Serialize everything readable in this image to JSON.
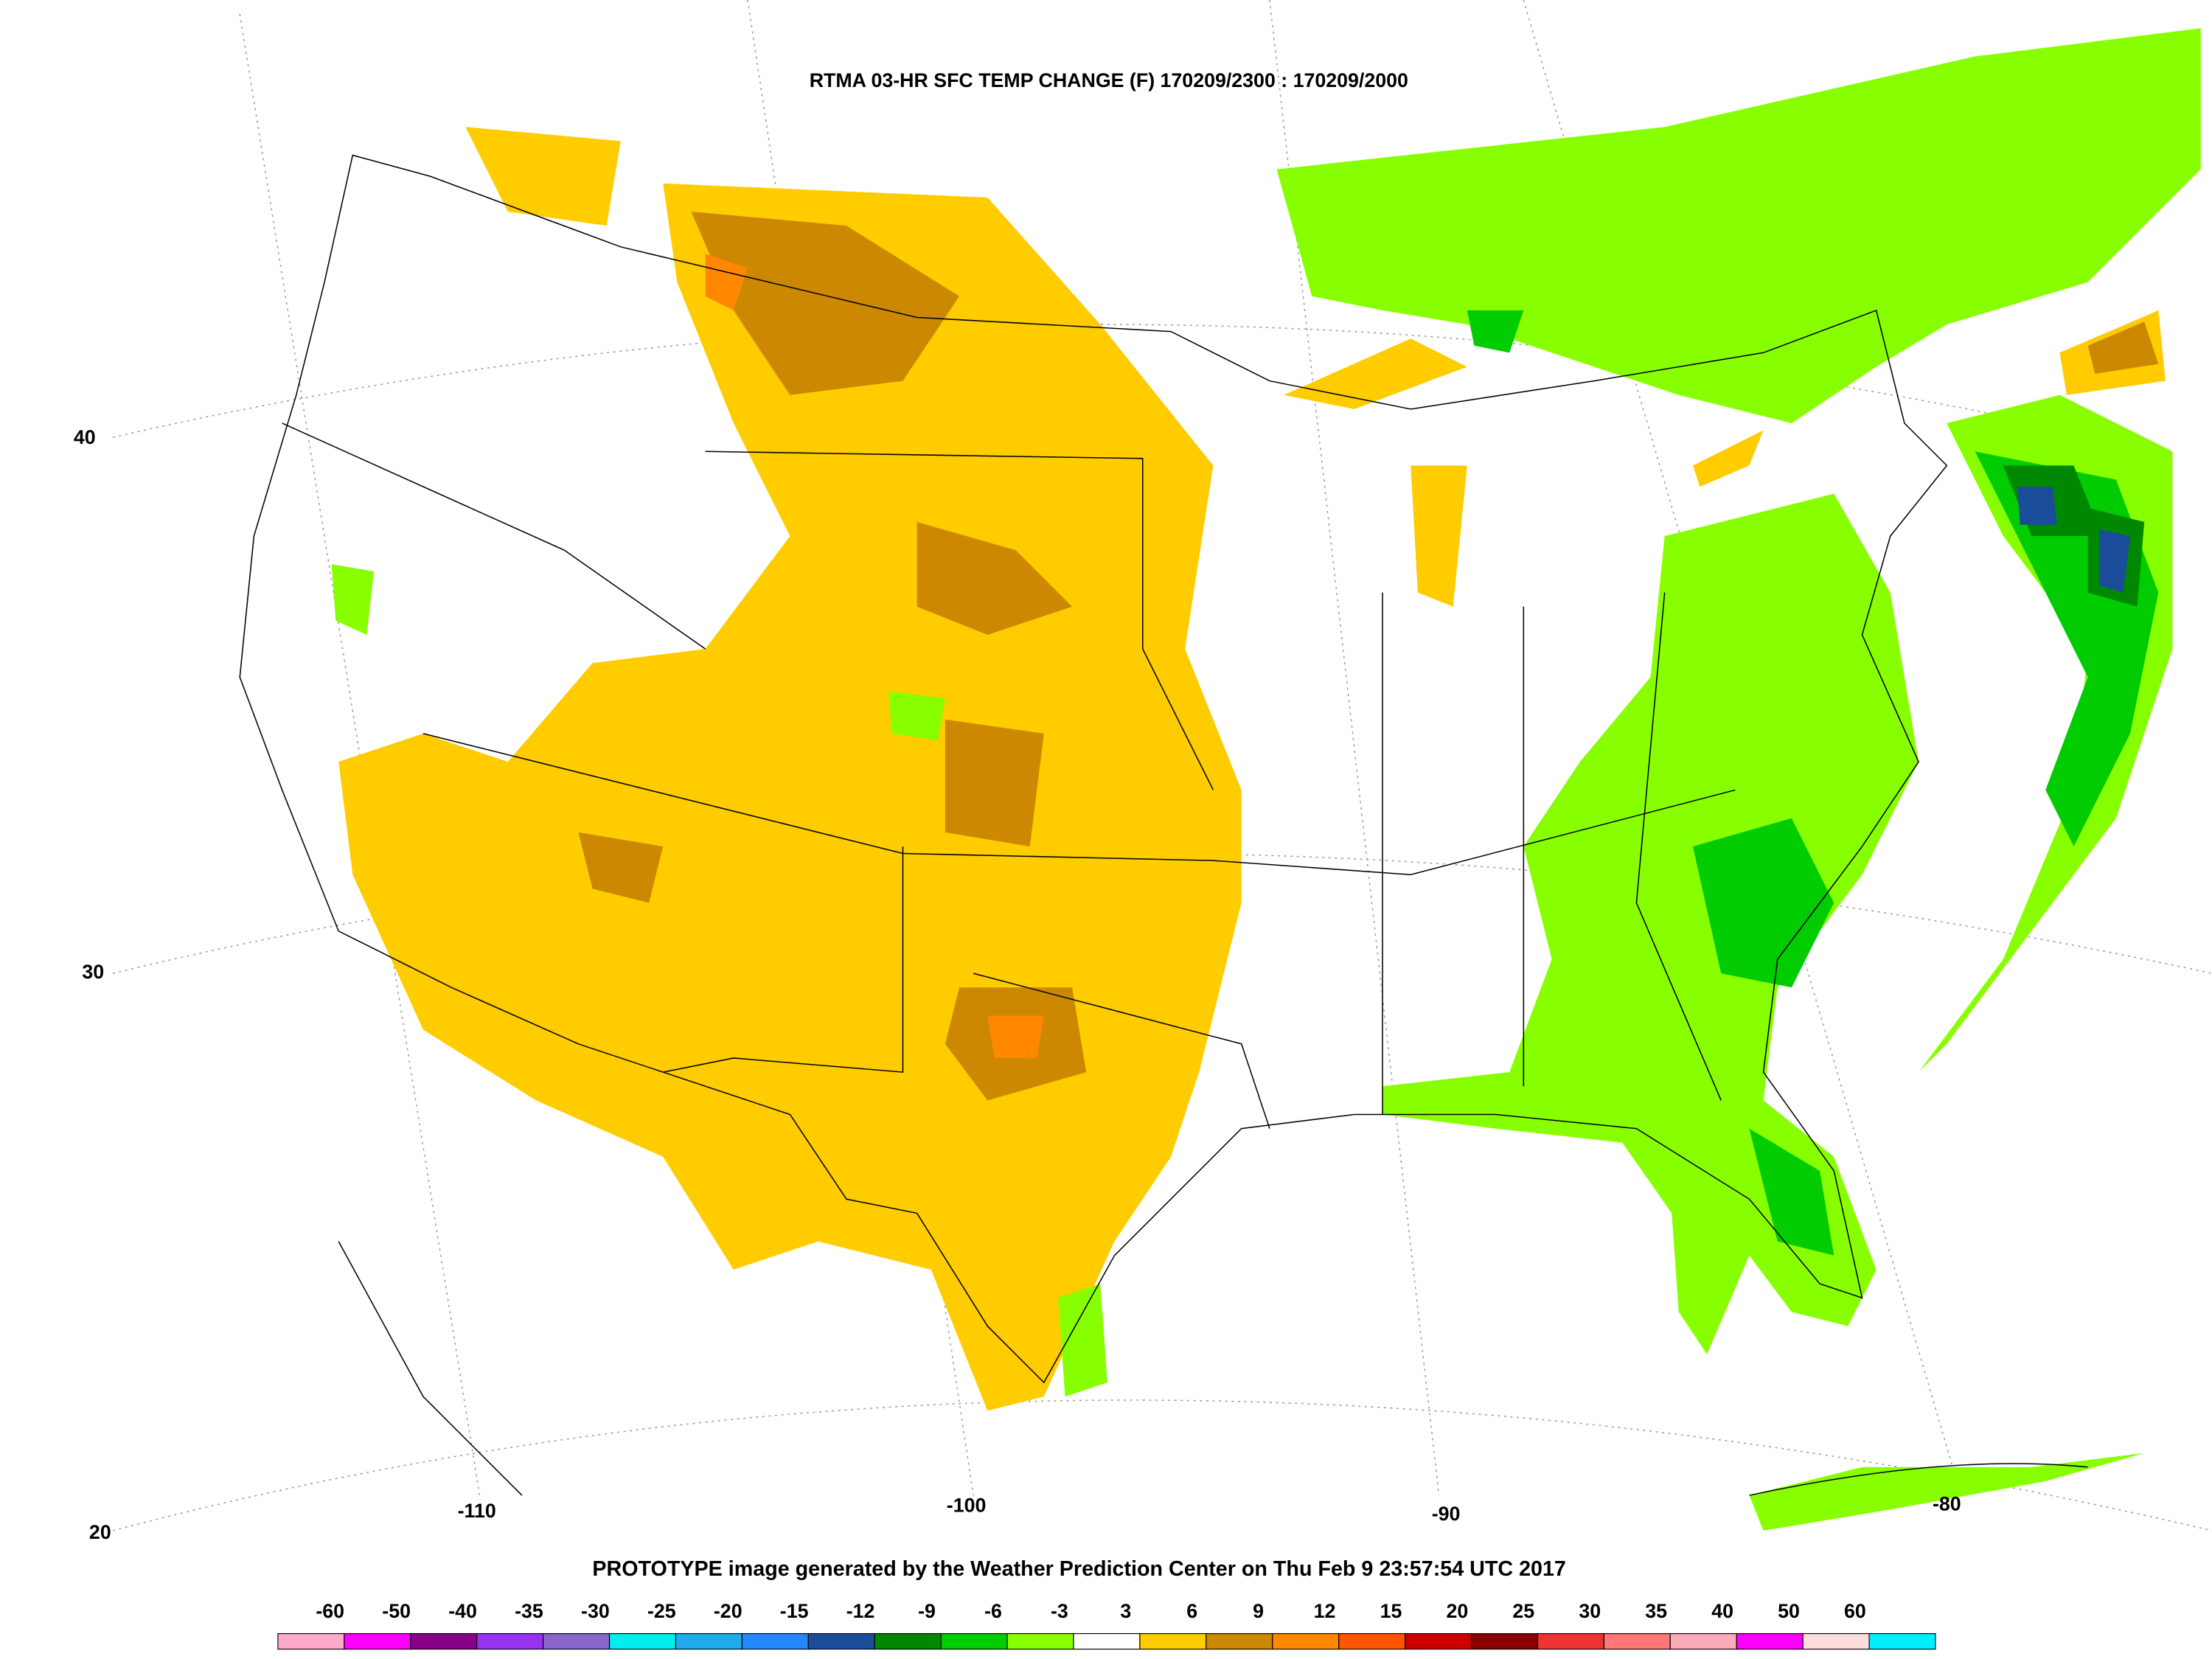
{
  "title": "RTMA 03-HR SFC TEMP CHANGE (F) 170209/2300 : 170209/2000",
  "footer": "PROTOTYPE image generated by the Weather Prediction Center on Thu Feb 9 23:57:54 UTC 2017",
  "latitude_labels": [
    "40",
    "30",
    "20"
  ],
  "longitude_labels": [
    "-110",
    "-100",
    "-90",
    "-80"
  ],
  "colorbar": {
    "labels": [
      "-60",
      "-50",
      "-40",
      "-35",
      "-30",
      "-25",
      "-20",
      "-15",
      "-12",
      "-9",
      "-6",
      "-3",
      "3",
      "6",
      "9",
      "12",
      "15",
      "20",
      "25",
      "30",
      "35",
      "40",
      "50",
      "60"
    ],
    "colors": [
      "#ffaacc",
      "#ff00ff",
      "#880088",
      "#9933ee",
      "#8866cc",
      "#00eeee",
      "#22aaee",
      "#2288ff",
      "#1a4d99",
      "#008800",
      "#00cc00",
      "#88ff00",
      "#ffffff",
      "#ffcc00",
      "#cc8800",
      "#ff8800",
      "#ff5500",
      "#cc0000",
      "#880000",
      "#ee3333",
      "#ff7777",
      "#ffaabb",
      "#ff00ff",
      "#ffdddd",
      "#00eeff"
    ]
  }
}
